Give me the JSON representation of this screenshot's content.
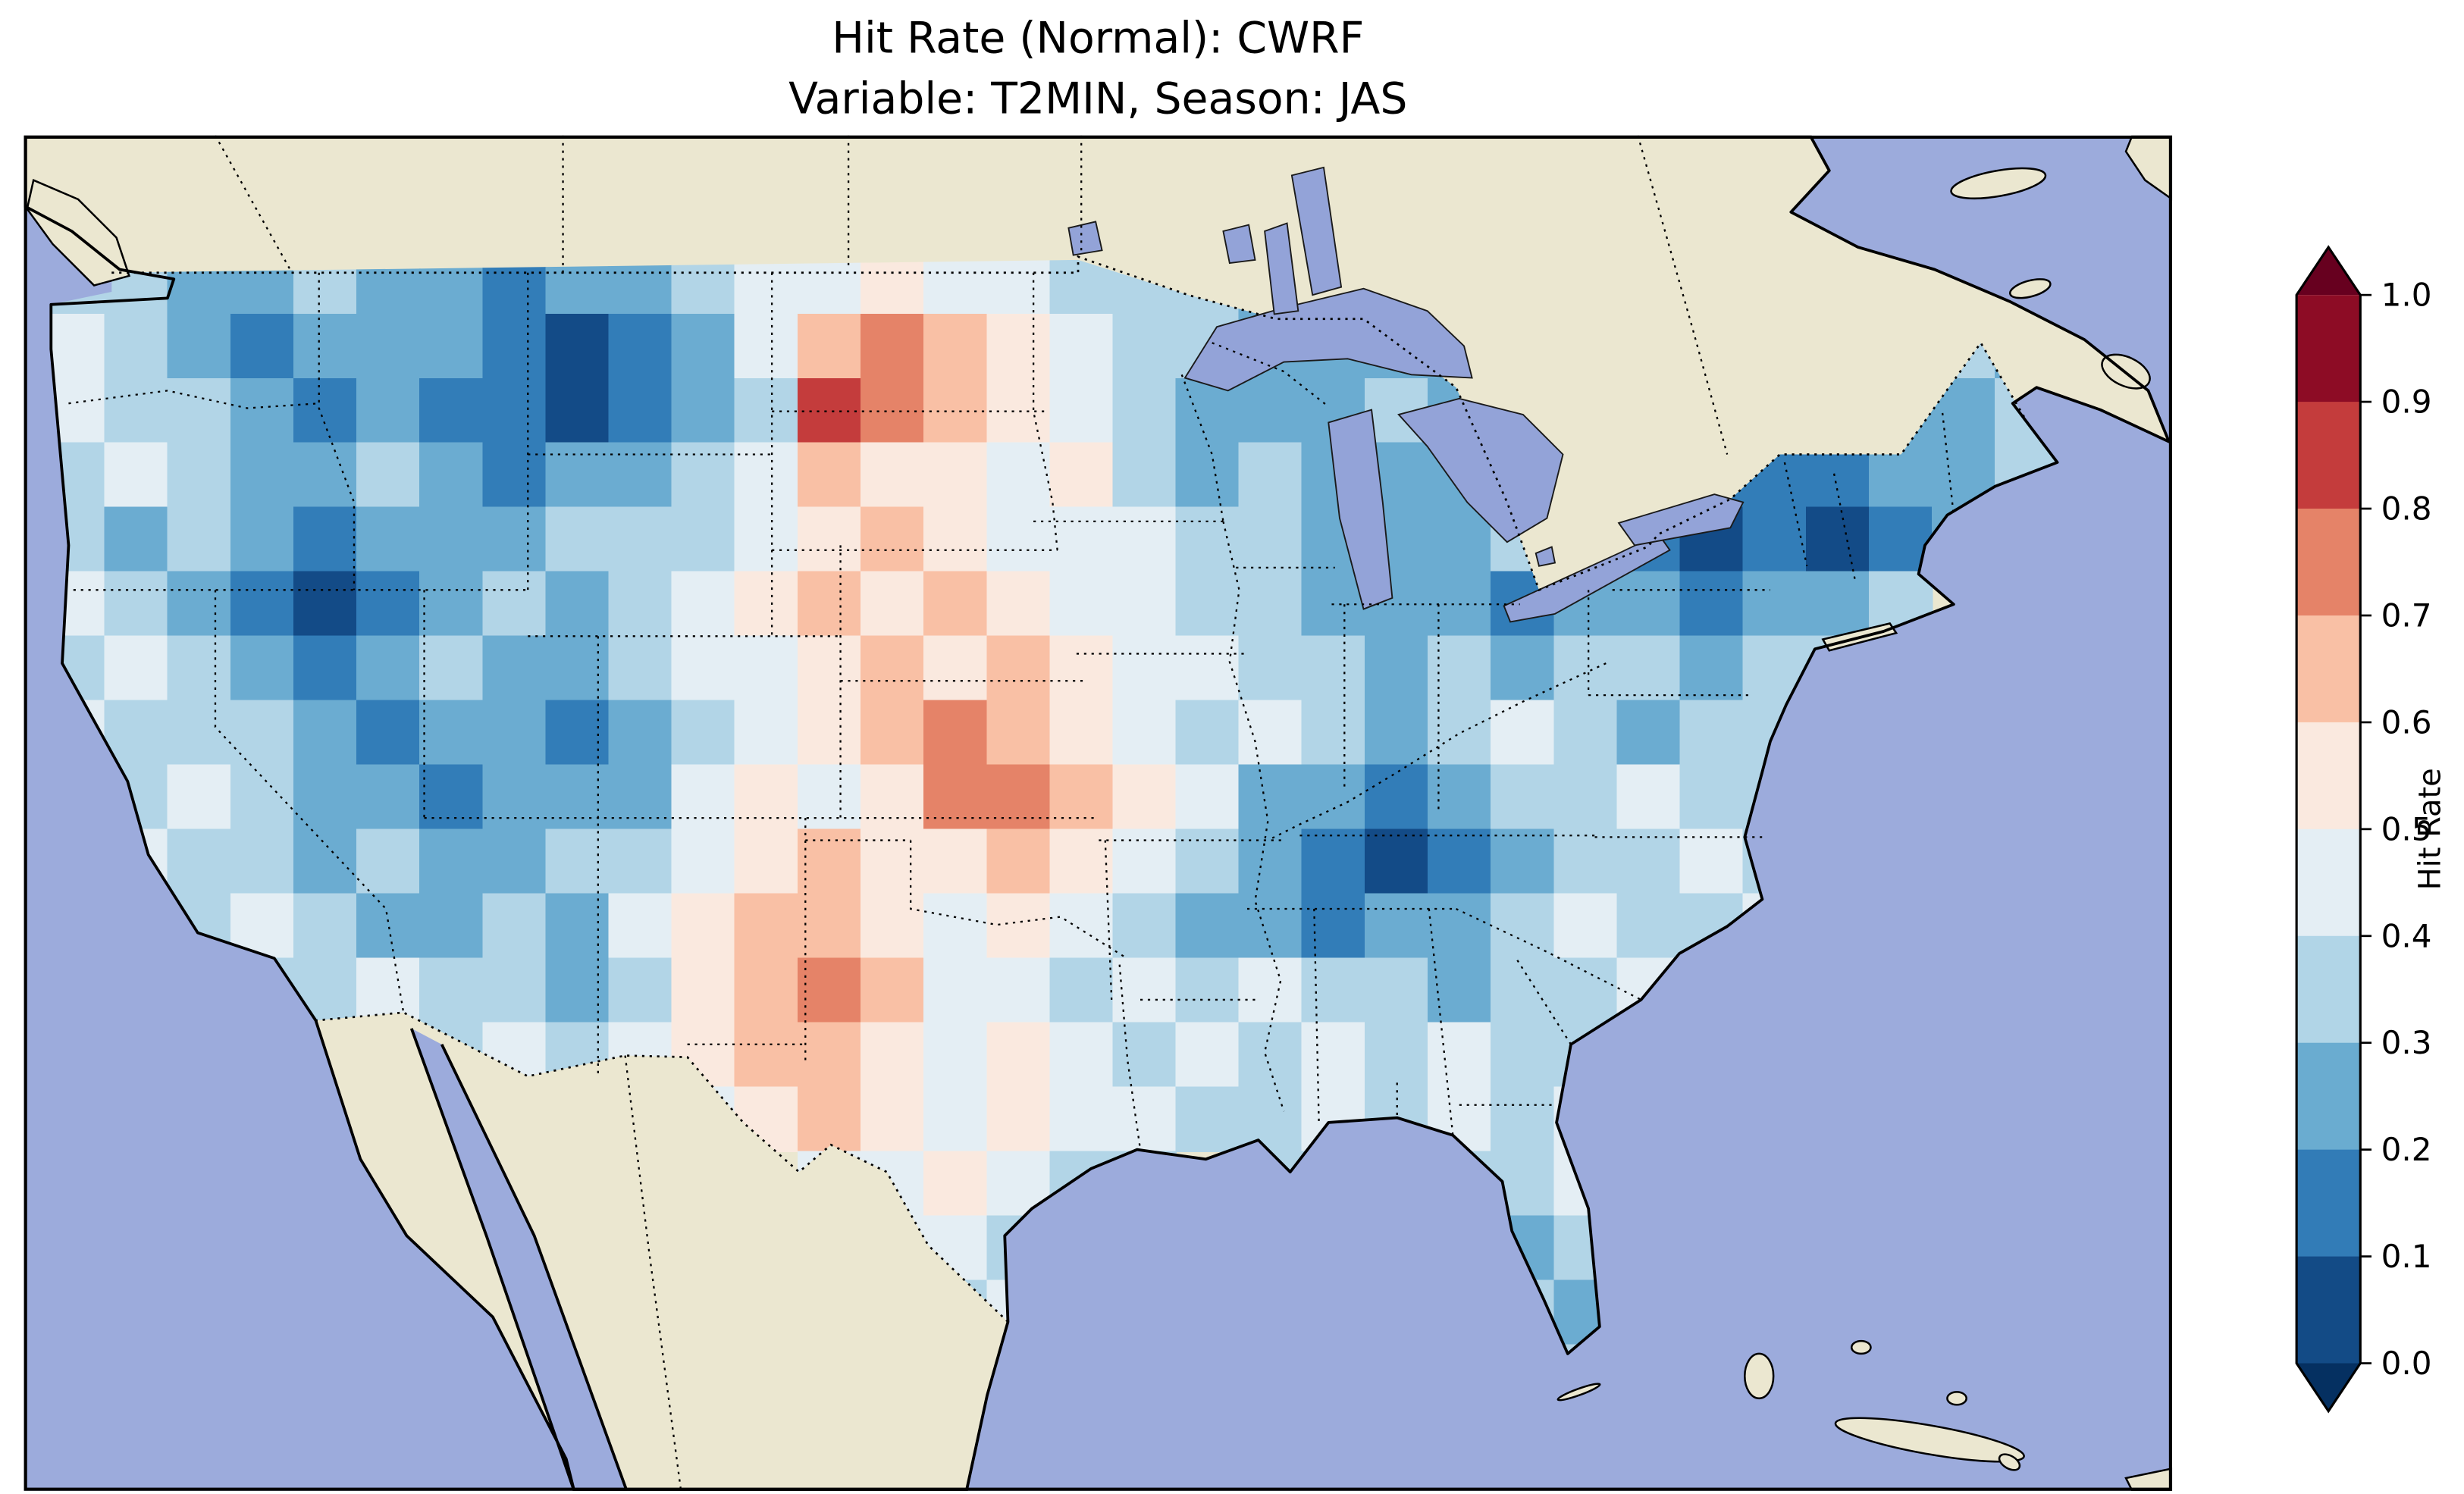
{
  "title": {
    "line1": "Hit Rate (Normal): CWRF",
    "line2": "Variable: T2MIN, Season: JAS"
  },
  "colorbar": {
    "label": "Hit Rate",
    "ticks": [
      "1.0",
      "0.9",
      "0.8",
      "0.7",
      "0.6",
      "0.5",
      "0.4",
      "0.3",
      "0.2",
      "0.1",
      "0.0"
    ]
  },
  "map_style": {
    "ocean": "#9cabdc",
    "land": "#ebe7d0",
    "lake": "#93a3d8",
    "coastline": "#000000"
  },
  "chart_data": {
    "type": "heatmap",
    "title": "Hit Rate (Normal): CWRF",
    "subtitle": "Variable: T2MIN, Season: JAS",
    "model": "CWRF",
    "variable": "T2MIN",
    "season": "JAS",
    "colorbar_label": "Hit Rate",
    "value_range": [
      0.0,
      1.0
    ],
    "bin_edges": [
      0.0,
      0.1,
      0.2,
      0.3,
      0.4,
      0.5,
      0.6,
      0.7,
      0.8,
      0.9,
      1.0
    ],
    "colormap": "RdBu_r",
    "colormap_anchors": [
      "#053061",
      "#2166ac",
      "#4393c3",
      "#92c5de",
      "#d1e5f0",
      "#f7f7f7",
      "#fddbc7",
      "#f4a582",
      "#d6604d",
      "#b2182b",
      "#67001f"
    ],
    "colorbar_extend": "both",
    "grid": {
      "lon_min": -125,
      "lon_max": -67,
      "lat_min": 24,
      "lat_max": 49.5,
      "ncols": 32,
      "nrows": 18
    },
    "values": [
      [
        0.35,
        0.35,
        0.25,
        0.25,
        0.35,
        0.25,
        0.25,
        0.15,
        0.25,
        0.25,
        0.35,
        0.45,
        0.45,
        0.55,
        0.45,
        0.45,
        0.35,
        0.35,
        0.35,
        0.25,
        0.25,
        0.25,
        null,
        null,
        null,
        null,
        null,
        null,
        null,
        null,
        null,
        null
      ],
      [
        0.45,
        0.35,
        0.25,
        0.15,
        0.25,
        0.25,
        0.25,
        0.15,
        0.05,
        0.15,
        0.25,
        0.45,
        0.65,
        0.75,
        0.65,
        0.55,
        0.45,
        0.35,
        0.35,
        0.25,
        0.25,
        0.25,
        0.25,
        null,
        null,
        null,
        null,
        null,
        null,
        0.35,
        0.35,
        0.25
      ],
      [
        0.45,
        0.35,
        0.35,
        0.25,
        0.15,
        0.25,
        0.15,
        0.15,
        0.05,
        0.15,
        0.25,
        0.35,
        0.85,
        0.75,
        0.65,
        0.55,
        0.45,
        0.35,
        0.25,
        0.25,
        0.25,
        0.35,
        0.25,
        0.25,
        null,
        null,
        null,
        0.25,
        0.25,
        0.25,
        0.25,
        0.35
      ],
      [
        0.35,
        0.45,
        0.35,
        0.25,
        0.25,
        0.35,
        0.25,
        0.15,
        0.25,
        0.25,
        0.35,
        0.45,
        0.65,
        0.55,
        0.55,
        0.45,
        0.55,
        0.35,
        0.25,
        0.35,
        0.25,
        0.25,
        0.25,
        0.25,
        0.25,
        0.25,
        0.15,
        0.15,
        0.15,
        0.25,
        0.25,
        0.35
      ],
      [
        0.35,
        0.25,
        0.35,
        0.25,
        0.15,
        0.25,
        0.25,
        0.25,
        0.35,
        0.35,
        0.35,
        0.45,
        0.55,
        0.65,
        0.55,
        0.45,
        0.45,
        0.45,
        0.35,
        0.35,
        0.25,
        0.25,
        0.25,
        0.35,
        0.25,
        0.15,
        0.05,
        0.15,
        0.05,
        0.15,
        0.25,
        null
      ],
      [
        0.45,
        0.35,
        0.25,
        0.15,
        0.05,
        0.15,
        0.25,
        0.35,
        0.25,
        0.35,
        0.45,
        0.55,
        0.65,
        0.55,
        0.65,
        0.55,
        0.45,
        0.45,
        0.35,
        0.35,
        0.25,
        0.25,
        0.25,
        0.15,
        0.25,
        0.25,
        0.15,
        0.25,
        0.25,
        0.35,
        null,
        null
      ],
      [
        0.35,
        0.45,
        0.35,
        0.25,
        0.15,
        0.25,
        0.35,
        0.25,
        0.25,
        0.35,
        0.45,
        0.45,
        0.55,
        0.65,
        0.55,
        0.65,
        0.55,
        0.45,
        0.45,
        0.35,
        0.35,
        0.25,
        0.35,
        0.25,
        0.35,
        0.35,
        0.25,
        0.35,
        0.35,
        null,
        null,
        null
      ],
      [
        0.45,
        0.35,
        0.35,
        0.35,
        0.25,
        0.15,
        0.25,
        0.25,
        0.15,
        0.25,
        0.35,
        0.45,
        0.55,
        0.65,
        0.75,
        0.65,
        0.55,
        0.45,
        0.35,
        0.45,
        0.35,
        0.25,
        0.35,
        0.45,
        0.35,
        0.25,
        0.35,
        0.35,
        null,
        null,
        null,
        null
      ],
      [
        null,
        0.35,
        0.45,
        0.35,
        0.25,
        0.25,
        0.15,
        0.25,
        0.25,
        0.25,
        0.45,
        0.55,
        0.45,
        0.55,
        0.75,
        0.75,
        0.65,
        0.55,
        0.45,
        0.25,
        0.25,
        0.15,
        0.25,
        0.35,
        0.35,
        0.45,
        0.35,
        0.35,
        null,
        null,
        null,
        null
      ],
      [
        null,
        0.45,
        0.35,
        0.35,
        0.25,
        0.35,
        0.25,
        0.25,
        0.35,
        0.35,
        0.45,
        0.55,
        0.65,
        0.55,
        0.55,
        0.65,
        0.55,
        0.45,
        0.35,
        0.25,
        0.15,
        0.05,
        0.15,
        0.25,
        0.35,
        0.35,
        0.45,
        0.35,
        null,
        null,
        null,
        null
      ],
      [
        null,
        null,
        0.35,
        0.45,
        0.35,
        0.25,
        0.25,
        0.35,
        0.25,
        0.45,
        0.55,
        0.65,
        0.65,
        0.55,
        0.45,
        0.55,
        0.45,
        0.35,
        0.25,
        0.25,
        0.15,
        0.25,
        0.25,
        0.35,
        0.45,
        0.35,
        0.35,
        0.45,
        null,
        null,
        null,
        null
      ],
      [
        null,
        null,
        null,
        0.35,
        0.35,
        0.45,
        0.35,
        0.35,
        0.25,
        0.35,
        0.55,
        0.65,
        0.75,
        0.65,
        0.45,
        0.45,
        0.35,
        0.45,
        0.35,
        0.45,
        0.35,
        0.35,
        0.25,
        0.35,
        0.35,
        0.45,
        null,
        null,
        null,
        null,
        null,
        null
      ],
      [
        null,
        null,
        null,
        null,
        0.45,
        0.45,
        0.35,
        0.45,
        0.35,
        0.45,
        0.55,
        0.65,
        0.65,
        0.55,
        0.45,
        0.55,
        0.45,
        0.35,
        0.45,
        0.35,
        0.45,
        0.35,
        0.45,
        0.35,
        0.35,
        null,
        null,
        null,
        null,
        null,
        null,
        null
      ],
      [
        null,
        null,
        null,
        null,
        null,
        null,
        null,
        null,
        null,
        null,
        0.45,
        0.55,
        0.65,
        0.55,
        0.45,
        0.55,
        0.45,
        0.45,
        0.35,
        0.35,
        0.45,
        0.35,
        0.45,
        0.35,
        0.45,
        null,
        null,
        null,
        null,
        null,
        null,
        null
      ],
      [
        null,
        null,
        null,
        null,
        null,
        null,
        null,
        null,
        null,
        null,
        null,
        null,
        0.45,
        0.45,
        0.55,
        0.45,
        0.35,
        0.35,
        null,
        0.35,
        0.35,
        null,
        0.35,
        0.35,
        0.45,
        null,
        null,
        null,
        null,
        null,
        null,
        null
      ],
      [
        null,
        null,
        null,
        null,
        null,
        null,
        null,
        null,
        null,
        null,
        null,
        null,
        null,
        0.45,
        0.45,
        0.35,
        null,
        null,
        null,
        null,
        null,
        null,
        0.35,
        0.25,
        0.35,
        null,
        null,
        null,
        null,
        null,
        null,
        null
      ],
      [
        null,
        null,
        null,
        null,
        null,
        null,
        null,
        null,
        null,
        null,
        null,
        null,
        null,
        0.35,
        0.35,
        0.45,
        null,
        null,
        null,
        null,
        null,
        null,
        0.35,
        0.35,
        0.25,
        null,
        null,
        null,
        null,
        null,
        null,
        null
      ],
      [
        null,
        null,
        null,
        null,
        null,
        null,
        null,
        null,
        null,
        null,
        null,
        null,
        null,
        null,
        null,
        null,
        null,
        null,
        null,
        null,
        null,
        null,
        null,
        0.35,
        0.35,
        null,
        null,
        null,
        null,
        null,
        null,
        null
      ]
    ]
  }
}
